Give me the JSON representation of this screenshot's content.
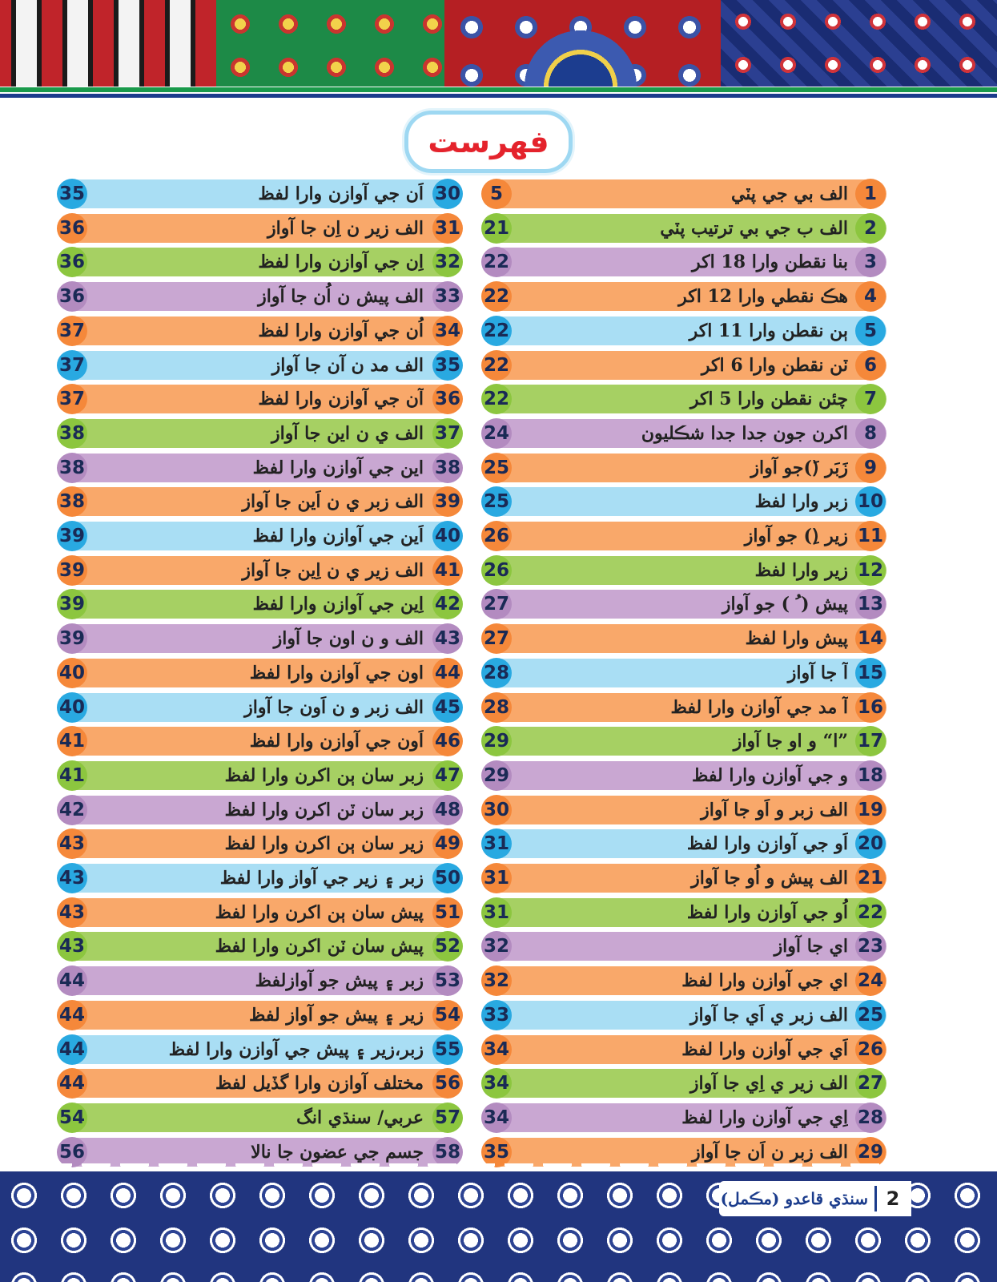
{
  "title": "فهرست",
  "colors": {
    "orange": "#f9a86a",
    "orange_dark": "#f5883a",
    "green": "#a6d063",
    "green_dark": "#8cc63f",
    "purple": "#c9a7d2",
    "purple_dark": "#b38bc0",
    "blue": "#a9def4",
    "blue_dark": "#29a9e1"
  },
  "right_column": [
    {
      "no": "1",
      "title": "الف بي جي پٽي",
      "page": "5",
      "color": "orange"
    },
    {
      "no": "2",
      "title": "الف ب جي بي ترتيب پٽي",
      "page": "21",
      "color": "green"
    },
    {
      "no": "3",
      "title": "بنا نقطن وارا 18 اکر",
      "page": "22",
      "color": "purple"
    },
    {
      "no": "4",
      "title": "هڪ نقطي وارا 12 اکر",
      "page": "22",
      "color": "orange"
    },
    {
      "no": "5",
      "title": "ٻن نقطن وارا 11 اکر",
      "page": "22",
      "color": "blue"
    },
    {
      "no": "6",
      "title": "ٽن نقطن وارا 6 اکر",
      "page": "22",
      "color": "orange"
    },
    {
      "no": "7",
      "title": "چئن نقطن وارا 5 اکر",
      "page": "22",
      "color": "green"
    },
    {
      "no": "8",
      "title": "اکرن جون جدا جدا شڪليون",
      "page": "24",
      "color": "purple"
    },
    {
      "no": "9",
      "title": "زَبَر (َ)جو آواز",
      "page": "25",
      "color": "orange"
    },
    {
      "no": "10",
      "title": "زبر وارا لفظ",
      "page": "25",
      "color": "blue"
    },
    {
      "no": "11",
      "title": "زير (ِ) جو آواز",
      "page": "26",
      "color": "orange"
    },
    {
      "no": "12",
      "title": "زير وارا لفظ",
      "page": "26",
      "color": "green"
    },
    {
      "no": "13",
      "title": "پيش ( ُ ) جو آواز",
      "page": "27",
      "color": "purple"
    },
    {
      "no": "14",
      "title": "پيش وارا لفظ",
      "page": "27",
      "color": "orange"
    },
    {
      "no": "15",
      "title": "آ جا آواز",
      "page": "28",
      "color": "blue"
    },
    {
      "no": "16",
      "title": "آ مد جي آوازن وارا لفظ",
      "page": "28",
      "color": "orange"
    },
    {
      "no": "17",
      "title": "”ا“ و او جا آواز",
      "page": "29",
      "color": "green"
    },
    {
      "no": "18",
      "title": "و جي آوازن وارا لفظ",
      "page": "29",
      "color": "purple"
    },
    {
      "no": "19",
      "title": "الف زبر و اَو جا آواز",
      "page": "30",
      "color": "orange"
    },
    {
      "no": "20",
      "title": "اَو جي آوازن وارا لفظ",
      "page": "31",
      "color": "blue"
    },
    {
      "no": "21",
      "title": "الف پيش و اُو جا آواز",
      "page": "31",
      "color": "orange"
    },
    {
      "no": "22",
      "title": "اُو جي آوازن وارا لفظ",
      "page": "31",
      "color": "green"
    },
    {
      "no": "23",
      "title": "اي جا آواز",
      "page": "32",
      "color": "purple"
    },
    {
      "no": "24",
      "title": "اي جي آوازن وارا لفظ",
      "page": "32",
      "color": "orange"
    },
    {
      "no": "25",
      "title": "الف زبر ي اَي جا آواز",
      "page": "33",
      "color": "blue"
    },
    {
      "no": "26",
      "title": "اَي جي آوازن وارا لفظ",
      "page": "34",
      "color": "orange"
    },
    {
      "no": "27",
      "title": "الف زير ي اِي جا آواز",
      "page": "34",
      "color": "green"
    },
    {
      "no": "28",
      "title": "اِي جي آوازن وارا لفظ",
      "page": "34",
      "color": "purple"
    },
    {
      "no": "29",
      "title": "الف زبر ن اَن جا آواز",
      "page": "35",
      "color": "orange"
    }
  ],
  "left_column": [
    {
      "no": "30",
      "title": "اَن جي آوازن وارا لفظ",
      "page": "35",
      "color": "blue"
    },
    {
      "no": "31",
      "title": "الف زير ن اِن جا آواز",
      "page": "36",
      "color": "orange"
    },
    {
      "no": "32",
      "title": "اِن جي آوازن وارا لفظ",
      "page": "36",
      "color": "green"
    },
    {
      "no": "33",
      "title": "الف پيش ن اُن جا آواز",
      "page": "36",
      "color": "purple"
    },
    {
      "no": "34",
      "title": "اُن جي آوازن وارا لفظ",
      "page": "37",
      "color": "orange"
    },
    {
      "no": "35",
      "title": "الف مد ن آن جا آواز",
      "page": "37",
      "color": "blue"
    },
    {
      "no": "36",
      "title": "آن جي آوازن وارا لفظ",
      "page": "37",
      "color": "orange"
    },
    {
      "no": "37",
      "title": "الف ي ن اين جا آواز",
      "page": "38",
      "color": "green"
    },
    {
      "no": "38",
      "title": "اين جي آوازن وارا لفظ",
      "page": "38",
      "color": "purple"
    },
    {
      "no": "39",
      "title": "الف زبر ي ن اَين جا آواز",
      "page": "38",
      "color": "orange"
    },
    {
      "no": "40",
      "title": "اَين جي آوازن وارا لفظ",
      "page": "39",
      "color": "blue"
    },
    {
      "no": "41",
      "title": "الف زير ي ن اِين  جا آواز",
      "page": "39",
      "color": "orange"
    },
    {
      "no": "42",
      "title": "اِين جي آوازن وارا لفظ",
      "page": "39",
      "color": "green"
    },
    {
      "no": "43",
      "title": "الف و ن اون جا آواز",
      "page": "39",
      "color": "purple"
    },
    {
      "no": "44",
      "title": "اون جي آوازن وارا لفظ",
      "page": "40",
      "color": "orange"
    },
    {
      "no": "45",
      "title": "الف زبر و ن اَون جا آواز",
      "page": "40",
      "color": "blue"
    },
    {
      "no": "46",
      "title": "اَون جي آوازن وارا لفظ",
      "page": "41",
      "color": "orange"
    },
    {
      "no": "47",
      "title": "زبر سان ٻن اکرن وارا لفظ",
      "page": "41",
      "color": "green"
    },
    {
      "no": "48",
      "title": "زبر سان ٽن اکرن وارا لفظ",
      "page": "42",
      "color": "purple"
    },
    {
      "no": "49",
      "title": "زير سان ٻن اکرن وارا لفظ",
      "page": "43",
      "color": "orange"
    },
    {
      "no": "50",
      "title": "زبر ۽ زير جي آواز وارا  لفظ",
      "page": "43",
      "color": "blue"
    },
    {
      "no": "51",
      "title": "پيش سان ٻن اکرن وارا لفظ",
      "page": "43",
      "color": "orange"
    },
    {
      "no": "52",
      "title": "پيش سان ٽن اکرن وارا لفظ",
      "page": "43",
      "color": "green"
    },
    {
      "no": "53",
      "title": "زبر ۽ پيش جو آوازلفظ",
      "page": "44",
      "color": "purple"
    },
    {
      "no": "54",
      "title": "زير ۽ پيش جو آواز لفظ",
      "page": "44",
      "color": "orange"
    },
    {
      "no": "55",
      "title": "زبر،زير ۽ پيش جي آوازن وارا لفظ",
      "page": "44",
      "color": "blue"
    },
    {
      "no": "56",
      "title": "مختلف آوازن وارا گڏيل لفظ",
      "page": "44",
      "color": "orange"
    },
    {
      "no": "57",
      "title": "عربي/ سنڌي انگ",
      "page": "54",
      "color": "green"
    },
    {
      "no": "58",
      "title": "جسم جي عضون جا نالا",
      "page": "56",
      "color": "purple"
    }
  ],
  "footer": {
    "book_title": "سنڌي قاعدو (مڪمل)",
    "page_number": "2"
  }
}
